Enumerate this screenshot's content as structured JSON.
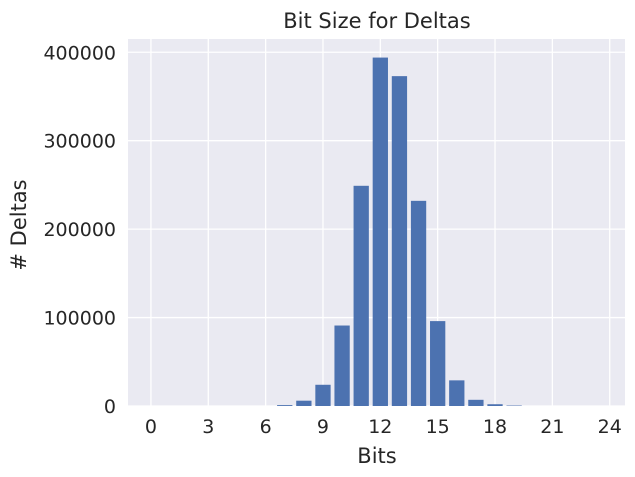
{
  "chart_data": {
    "type": "bar",
    "title": "Bit Size for Deltas",
    "xlabel": "Bits",
    "ylabel": "# Deltas",
    "x": [
      0,
      1,
      2,
      3,
      4,
      5,
      6,
      7,
      8,
      9,
      10,
      11,
      12,
      13,
      14,
      15,
      16,
      17,
      18,
      19,
      20,
      21,
      22,
      23,
      24
    ],
    "values": [
      0,
      0,
      0,
      0,
      0,
      0,
      0,
      1000,
      6000,
      24000,
      91000,
      249000,
      394000,
      373000,
      232000,
      96000,
      29000,
      7000,
      2000,
      500,
      0,
      0,
      0,
      0,
      0
    ],
    "xticks": [
      0,
      3,
      6,
      9,
      12,
      15,
      18,
      21,
      24
    ],
    "yticks": [
      0,
      100000,
      200000,
      300000,
      400000
    ],
    "xlim": [
      -1.2,
      24.8
    ],
    "ylim": [
      0,
      415000
    ],
    "grid": true,
    "colors": {
      "bar": "#4c72b0",
      "background": "#eaeaf2",
      "grid": "#ffffff",
      "text": "#262626"
    }
  }
}
